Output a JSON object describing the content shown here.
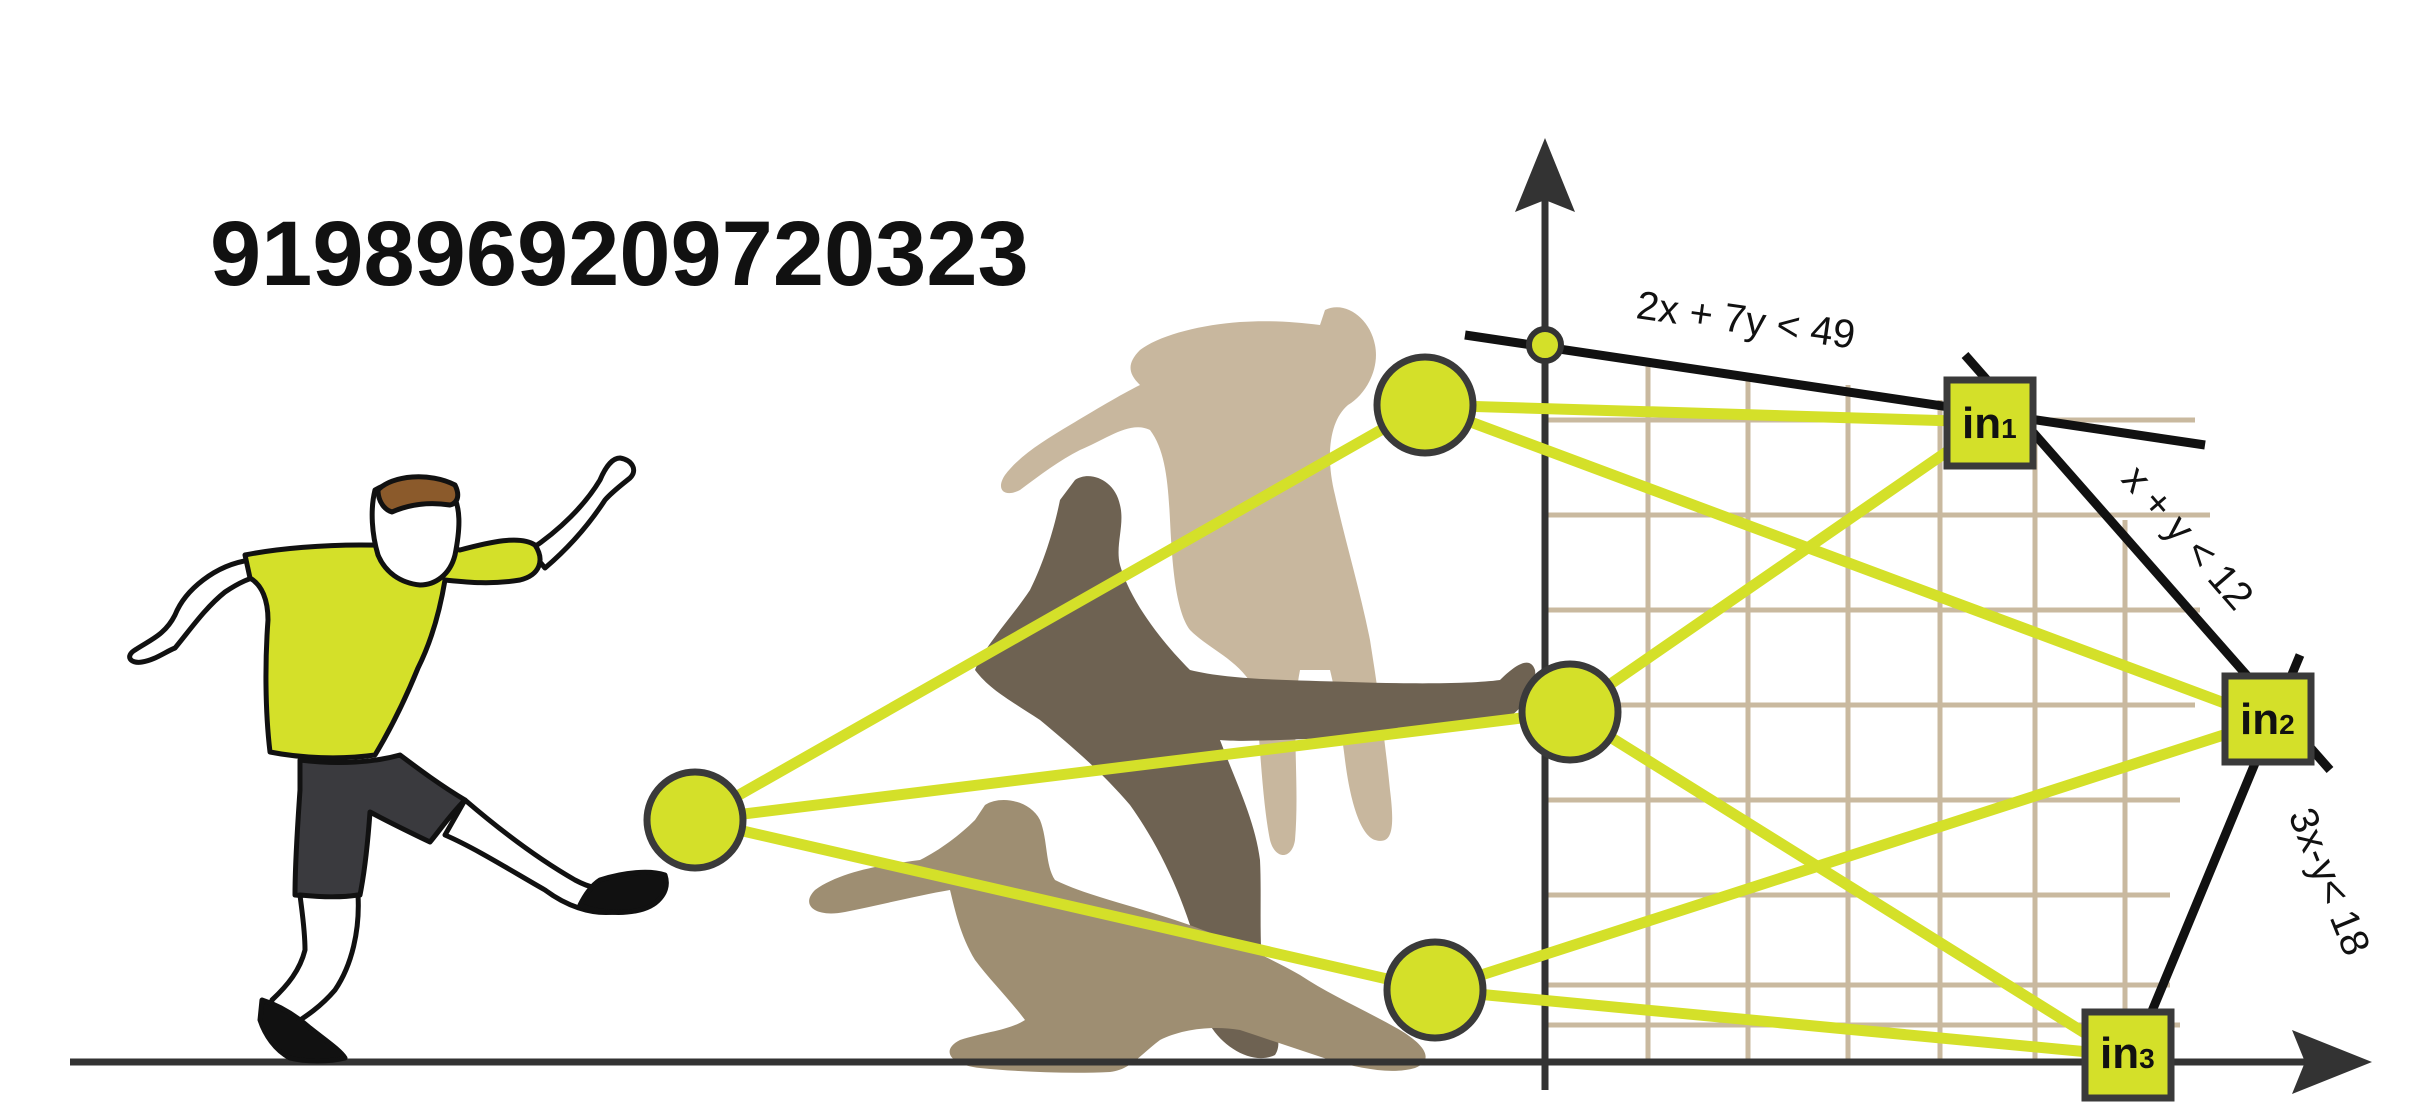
{
  "number": "9198969209720323",
  "inequalities": {
    "line1": "2x + 7y < 49",
    "line2": "x + y < 12",
    "line3": "3x-y< 18"
  },
  "input_nodes": [
    {
      "label": "in",
      "sub": "1"
    },
    {
      "label": "in",
      "sub": "2"
    },
    {
      "label": "in",
      "sub": "3"
    }
  ],
  "colors": {
    "accent": "#d4e029",
    "node_border": "#3a3a3a",
    "grid": "#c9b99f",
    "axis": "#333333",
    "silhouette_light": "#c8b79e",
    "silhouette_dark": "#6e6252",
    "silhouette_mid": "#9e8e72"
  }
}
